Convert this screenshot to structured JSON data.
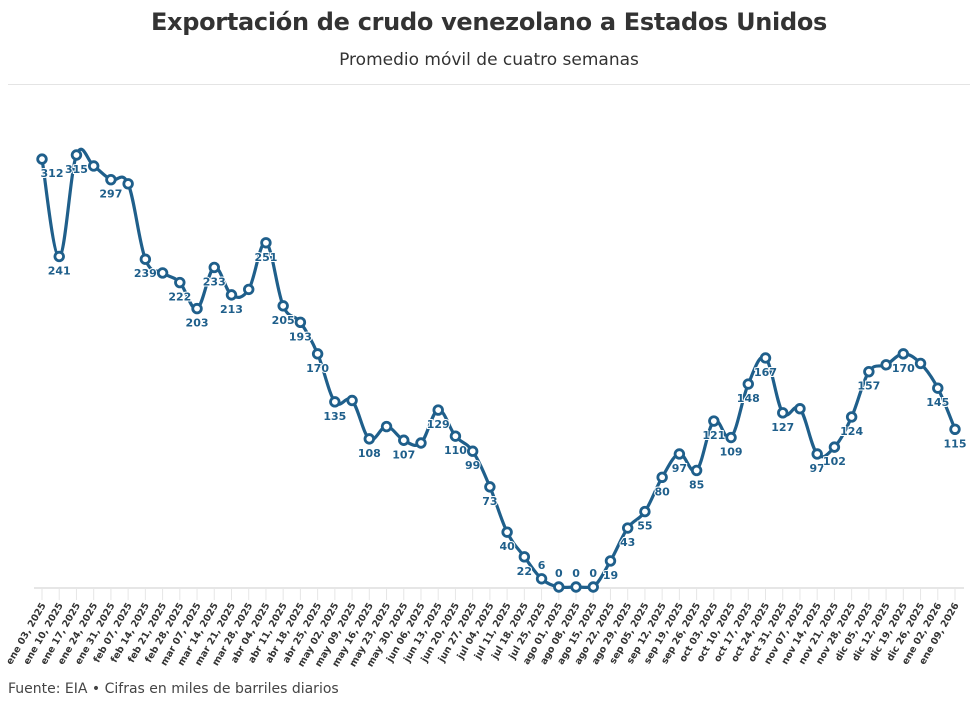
{
  "chart_data": {
    "type": "line",
    "title": "Exportación de crudo venezolano a Estados Unidos",
    "subtitle": "Promedio móvil de cuatro semanas",
    "footer": "Fuente: EIA • Cifras en miles de barriles diarios",
    "line_color": "#1f5f8b",
    "grid": false,
    "categories": [
      "ene 03, 2025",
      "ene 10, 2025",
      "ene 17, 2025",
      "ene 24, 2025",
      "ene 31, 2025",
      "feb 07, 2025",
      "feb 14, 2025",
      "feb 21, 2025",
      "feb 28, 2025",
      "mar 07, 2025",
      "mar 14, 2025",
      "mar 21, 2025",
      "mar 28, 2025",
      "abr 04, 2025",
      "abr 11, 2025",
      "abr 18, 2025",
      "abr 25, 2025",
      "may 02, 2025",
      "may 09, 2025",
      "may 16, 2025",
      "may 23, 2025",
      "may 30, 2025",
      "jun 06, 2025",
      "jun 13, 2025",
      "jun 20, 2025",
      "jun 27, 2025",
      "jul 04, 2025",
      "jul 11, 2025",
      "jul 18, 2025",
      "jul 25, 2025",
      "ago 01, 2025",
      "ago 08, 2025",
      "ago 15, 2025",
      "ago 22, 2025",
      "ago 29, 2025",
      "sep 05, 2025",
      "sep 12, 2025",
      "sep 19, 2025",
      "sep 26, 2025",
      "oct 03, 2025",
      "oct 10, 2025",
      "oct 17, 2025",
      "oct 24, 2025",
      "oct 31, 2025",
      "nov 07, 2025",
      "nov 14, 2025",
      "nov 21, 2025",
      "nov 28, 2025",
      "dic 05, 2025",
      "dic 12, 2025",
      "dic 19, 2025",
      "dic 26, 2025",
      "ene 02, 2026",
      "ene 09, 2026"
    ],
    "values": [
      312,
      241,
      315,
      307,
      297,
      294,
      239,
      229,
      222,
      203,
      233,
      213,
      217,
      251,
      205,
      193,
      170,
      135,
      136,
      108,
      117,
      107,
      105,
      129,
      110,
      99,
      73,
      40,
      22,
      6,
      0,
      0,
      0,
      19,
      43,
      55,
      80,
      97,
      85,
      121,
      109,
      148,
      167,
      127,
      130,
      97,
      102,
      124,
      157,
      162,
      170,
      163,
      145,
      115
    ],
    "labeled": [
      true,
      true,
      true,
      false,
      true,
      false,
      true,
      false,
      true,
      true,
      true,
      true,
      false,
      true,
      true,
      true,
      true,
      true,
      false,
      true,
      false,
      true,
      false,
      true,
      true,
      true,
      true,
      true,
      true,
      true,
      true,
      true,
      true,
      true,
      true,
      true,
      true,
      true,
      true,
      true,
      true,
      true,
      true,
      true,
      false,
      true,
      true,
      true,
      true,
      false,
      true,
      false,
      true,
      true
    ],
    "ylim": [
      0,
      315
    ]
  }
}
